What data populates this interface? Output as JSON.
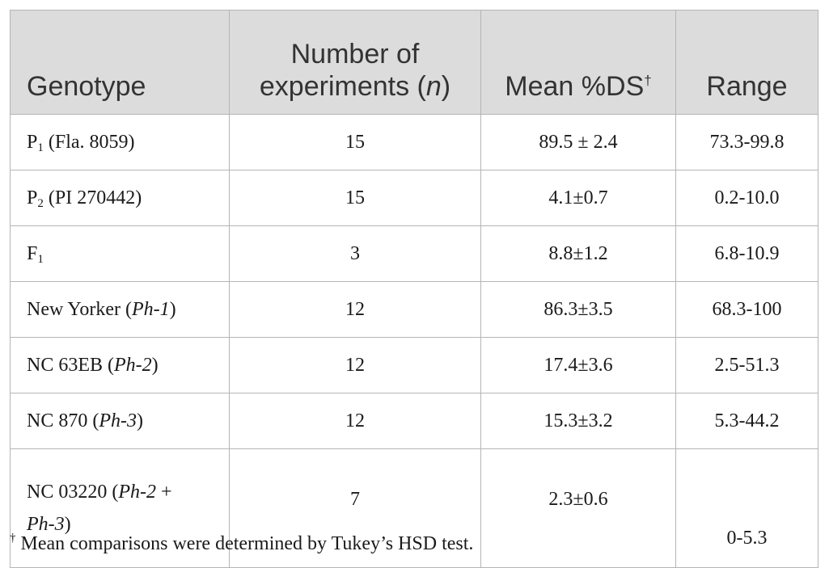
{
  "headers": {
    "genotype": "Genotype",
    "number_line1": "Number of",
    "number_line2_prefix": "experiments (",
    "number_line2_italic": "n",
    "number_line2_suffix": ")",
    "mean": "Mean %DS",
    "mean_mark": "†",
    "range": "Range"
  },
  "rows": [
    {
      "genotype_prefix": "P",
      "genotype_sub": "1",
      "genotype_suffix": " (Fla. 8059)",
      "n": "15",
      "mean": "89.5 ± 2.4",
      "range": "73.3-99.8"
    },
    {
      "genotype_prefix": "P",
      "genotype_sub": "2",
      "genotype_suffix": " (PI 270442)",
      "n": "15",
      "mean": "4.1±0.7",
      "range": "0.2-10.0"
    },
    {
      "genotype_prefix": "F",
      "genotype_sub": "1",
      "genotype_suffix": "",
      "n": "3",
      "mean": "8.8±1.2",
      "range": "6.8-10.9"
    },
    {
      "genotype_prefix": "New Yorker (",
      "genotype_italic": "Ph-1",
      "genotype_suffix": ")",
      "n": "12",
      "mean": "86.3±3.5",
      "range": "68.3-100"
    },
    {
      "genotype_prefix": "NC 63EB (",
      "genotype_italic": "Ph-2",
      "genotype_suffix": ")",
      "n": "12",
      "mean": "17.4±3.6",
      "range": "2.5-51.3"
    },
    {
      "genotype_prefix": "NC 870 (",
      "genotype_italic": "Ph-3",
      "genotype_suffix": ")",
      "n": "12",
      "mean": "15.3±3.2",
      "range": "5.3-44.2"
    },
    {
      "genotype_prefix": "NC 03220 (",
      "genotype_italic": "Ph-2",
      "genotype_mid": " +",
      "genotype_italic2": "Ph-3",
      "genotype_suffix": ")",
      "n": "7",
      "mean": "2.3±0.6",
      "range": "0-5.3"
    }
  ],
  "footnote": {
    "mark": "†",
    "text": "Mean comparisons were determined by Tukey’s HSD test."
  }
}
